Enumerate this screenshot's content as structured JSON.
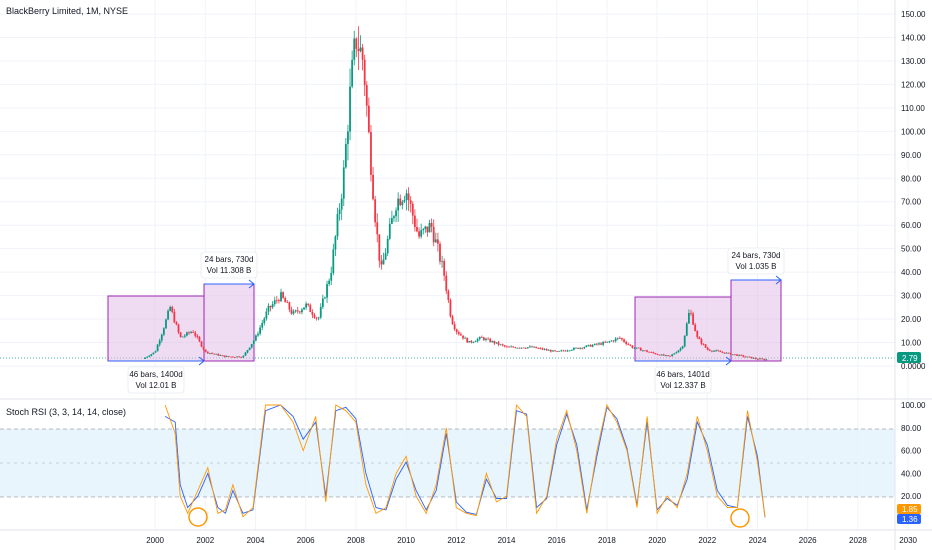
{
  "header": {
    "symbol_title": "BlackBerry Limited, 1M, NYSE"
  },
  "indicator": {
    "title": "Stoch RSI (3, 3, 14, 14, close)"
  },
  "price_axis": {
    "ticks": [
      "150.00",
      "140.00",
      "130.00",
      "120.00",
      "110.00",
      "100.00",
      "90.00",
      "80.00",
      "70.00",
      "60.00",
      "50.00",
      "40.00",
      "30.00",
      "20.00",
      "10.00",
      "0.0000"
    ],
    "last_price": "2.79",
    "last_price_color": "#089981"
  },
  "stoch_axis": {
    "ticks": [
      "100.00",
      "80.00",
      "60.00",
      "40.00",
      "20.00"
    ],
    "k_value": "1.85",
    "k_color": "#ff9800",
    "d_value": "1.36",
    "d_color": "#2962ff"
  },
  "time_axis": {
    "ticks": [
      "2000",
      "2002",
      "2004",
      "2006",
      "2008",
      "2010",
      "2012",
      "2014",
      "2016",
      "2018",
      "2020",
      "2022",
      "2024",
      "2026",
      "2028",
      "2030"
    ]
  },
  "measurements": [
    {
      "lines": [
        "46 bars, 1400d",
        "Vol 12.01 B"
      ]
    },
    {
      "lines": [
        "24 bars, 730d",
        "Vol 11.308 B"
      ]
    },
    {
      "lines": [
        "46 bars, 1401d",
        "Vol 12.337 B"
      ]
    },
    {
      "lines": [
        "24 bars, 730d",
        "Vol 1.035 B"
      ]
    }
  ],
  "colors": {
    "up": "#089981",
    "down": "#f23645",
    "box_fill": "#e1bee7",
    "box_border": "#9c27b0",
    "arrow": "#2962ff",
    "band": "#e3f2fd",
    "highlight_circle": "#ff9800"
  },
  "chart_data": {
    "type": "candlestick",
    "price_series": {
      "name": "BlackBerry Limited",
      "x": [
        1999.5,
        2000.0,
        2000.3,
        2000.6,
        2001.0,
        2001.5,
        2002.0,
        2002.8,
        2003.5,
        2004.0,
        2004.5,
        2005.0,
        2005.5,
        2006.0,
        2006.5,
        2007.0,
        2007.5,
        2007.8,
        2008.0,
        2008.3,
        2008.5,
        2008.8,
        2009.0,
        2009.3,
        2009.6,
        2010.0,
        2010.5,
        2011.0,
        2011.5,
        2011.8,
        2012.0,
        2012.5,
        2013.0,
        2013.5,
        2014.0,
        2015.0,
        2016.0,
        2017.0,
        2018.0,
        2018.5,
        2019.0,
        2020.0,
        2020.5,
        2021.0,
        2021.3,
        2021.6,
        2022.0,
        2023.0,
        2024.0,
        2024.3
      ],
      "y": [
        3,
        6,
        15,
        25,
        12,
        15,
        6,
        4,
        4,
        12,
        24,
        30,
        22,
        26,
        20,
        40,
        80,
        120,
        140,
        130,
        100,
        60,
        40,
        55,
        70,
        75,
        55,
        60,
        40,
        20,
        15,
        10,
        12,
        10,
        8,
        8,
        6,
        8,
        10,
        12,
        8,
        5,
        4,
        8,
        24,
        12,
        7,
        5,
        3,
        2.79
      ]
    },
    "stoch_rsi": {
      "x": [
        2000.4,
        2000.8,
        2001.0,
        2001.3,
        2001.7,
        2002.1,
        2002.5,
        2002.8,
        2003.1,
        2003.5,
        2003.9,
        2004.4,
        2005.0,
        2005.5,
        2005.9,
        2006.4,
        2006.8,
        2007.2,
        2007.6,
        2008.0,
        2008.4,
        2008.8,
        2009.2,
        2009.6,
        2010.0,
        2010.4,
        2010.8,
        2011.2,
        2011.6,
        2012.0,
        2012.4,
        2012.8,
        2013.2,
        2013.6,
        2014.0,
        2014.4,
        2014.8,
        2015.2,
        2015.6,
        2016.0,
        2016.4,
        2016.8,
        2017.2,
        2017.6,
        2018.0,
        2018.4,
        2018.8,
        2019.2,
        2019.6,
        2020.0,
        2020.4,
        2020.8,
        2021.2,
        2021.6,
        2022.0,
        2022.4,
        2022.8,
        2023.2,
        2023.6,
        2024.0,
        2024.3
      ],
      "k": [
        100,
        75,
        20,
        5,
        25,
        45,
        5,
        8,
        30,
        2,
        10,
        100,
        100,
        85,
        60,
        90,
        15,
        100,
        95,
        85,
        30,
        5,
        10,
        40,
        55,
        20,
        5,
        30,
        80,
        10,
        5,
        3,
        40,
        15,
        20,
        100,
        90,
        5,
        20,
        70,
        95,
        60,
        5,
        60,
        100,
        85,
        60,
        10,
        90,
        5,
        20,
        10,
        40,
        90,
        60,
        20,
        10,
        10,
        95,
        50,
        1.85
      ],
      "d": [
        90,
        85,
        30,
        10,
        20,
        40,
        10,
        5,
        25,
        5,
        8,
        95,
        100,
        90,
        70,
        85,
        20,
        95,
        98,
        88,
        40,
        10,
        8,
        35,
        50,
        25,
        8,
        25,
        75,
        15,
        6,
        4,
        35,
        18,
        18,
        95,
        92,
        10,
        18,
        65,
        92,
        65,
        8,
        55,
        98,
        88,
        62,
        12,
        85,
        8,
        18,
        12,
        35,
        85,
        65,
        25,
        12,
        10,
        90,
        55,
        1.36
      ]
    },
    "y_range_price": [
      0,
      150
    ],
    "y_range_stoch": [
      0,
      100
    ],
    "x_range": [
      1999,
      2030.5
    ]
  }
}
